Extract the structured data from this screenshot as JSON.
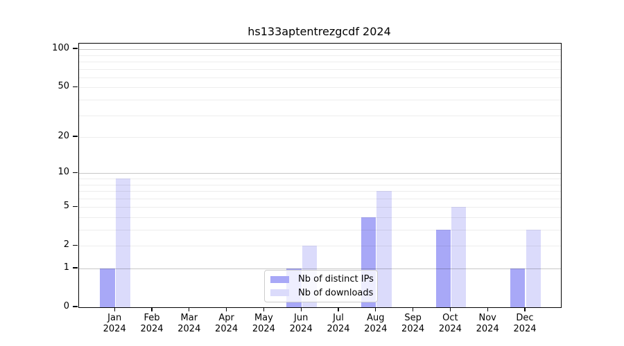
{
  "chart_data": {
    "type": "bar",
    "title": "hs133aptentrezgcdf 2024",
    "categories": [
      "Jan",
      "Feb",
      "Mar",
      "Apr",
      "May",
      "Jun",
      "Jul",
      "Aug",
      "Sep",
      "Oct",
      "Nov",
      "Dec"
    ],
    "x_tick_second_line": "2024",
    "series": [
      {
        "name": "Nb of distinct IPs",
        "color": "#a8a8f7",
        "values": [
          1,
          0,
          0,
          0,
          0,
          1,
          0,
          4,
          0,
          3,
          0,
          1
        ]
      },
      {
        "name": "Nb of downloads",
        "color": "#dbdbfb",
        "values": [
          9,
          0,
          0,
          0,
          0,
          2,
          0,
          7,
          0,
          5,
          0,
          3
        ]
      }
    ],
    "y_axis": {
      "scale": "log10(1+v)",
      "tick_labels": [
        0,
        1,
        2,
        5,
        10,
        20,
        50,
        100
      ],
      "major_gridlines": [
        1,
        10,
        100
      ],
      "minor_gridlines": [
        2,
        3,
        4,
        5,
        6,
        7,
        8,
        9,
        20,
        30,
        40,
        50,
        60,
        70,
        80,
        90
      ],
      "top_value": 110
    },
    "legend": {
      "position": "lower center",
      "entries": [
        "Nb of distinct IPs",
        "Nb of downloads"
      ]
    },
    "grid": true,
    "colors": {
      "distinct_ips": "#a8a8f7",
      "downloads": "#dbdbfb",
      "major_grid": "#c9c9c9",
      "minor_grid": "#ededed",
      "axis": "#000000",
      "background": "#ffffff"
    }
  }
}
